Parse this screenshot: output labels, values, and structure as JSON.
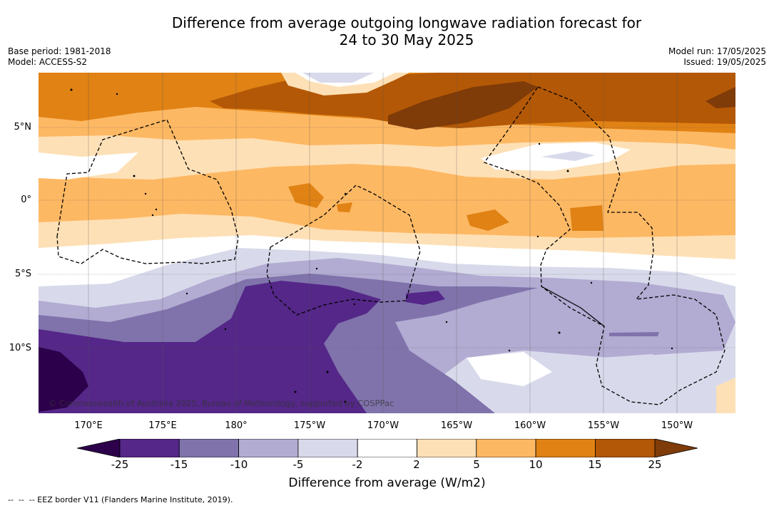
{
  "title_line1": "Difference from average outgoing longwave radiation forecast for",
  "title_line2": "24 to 30 May 2025",
  "base_period": "Base period: 1981-2018",
  "model": "Model: ACCESS-S2",
  "model_run": "Model run: 17/05/2025",
  "issued": "Issued: 19/05/2025",
  "copyright": "© Commonwealth of Australia 2025, Bureau of Meteorology, supported by COSPPac",
  "lat_labels": [
    "5°N",
    "0°",
    "5°S",
    "10°S"
  ],
  "lon_labels": [
    "170°E",
    "175°E",
    "180°",
    "175°W",
    "170°W",
    "165°W",
    "160°W",
    "155°W",
    "150°W"
  ],
  "colorbar": {
    "label": "Difference from average (W/m2)",
    "ticks": [
      "-25",
      "-15",
      "-10",
      "-5",
      "-2",
      "2",
      "5",
      "10",
      "15",
      "25"
    ],
    "colors": {
      "lt_-25": "#2d004b",
      "-25_-15": "#542788",
      "-15_-10": "#8073ac",
      "-10_-5": "#b2abd2",
      "-5_-2": "#d8daeb",
      "-2_2": "#ffffff",
      "2_5": "#fee0b6",
      "5_10": "#fdb863",
      "10_15": "#e08214",
      "15_25": "#b35806",
      "gt_25": "#7f3b08"
    }
  },
  "footer": "--  --  -- EEZ border V11 (Flanders Marine Institute, 2019)."
}
